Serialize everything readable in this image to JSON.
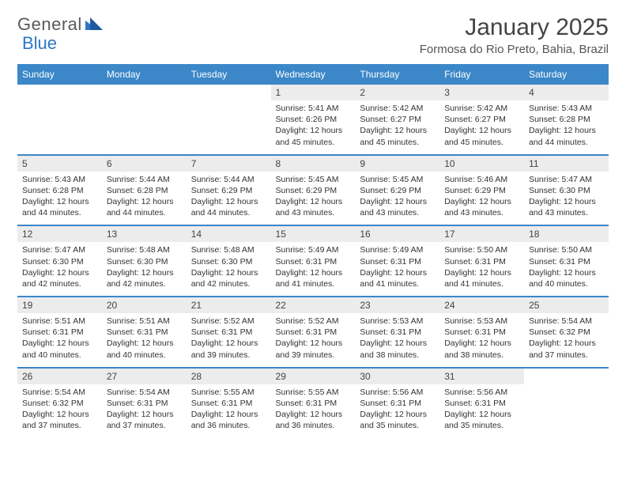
{
  "logo": {
    "text1": "General",
    "text2": "Blue"
  },
  "title": "January 2025",
  "location": "Formosa do Rio Preto, Bahia, Brazil",
  "colors": {
    "header_bg": "#3b87c8",
    "header_text": "#ffffff",
    "daynum_bg": "#ececec",
    "border": "#3b87c8",
    "logo_gray": "#5a5a5a",
    "logo_blue": "#2b78c4",
    "body_text": "#333333"
  },
  "day_headers": [
    "Sunday",
    "Monday",
    "Tuesday",
    "Wednesday",
    "Thursday",
    "Friday",
    "Saturday"
  ],
  "weeks": [
    {
      "nums": [
        "",
        "",
        "",
        "1",
        "2",
        "3",
        "4"
      ],
      "cells": [
        null,
        null,
        null,
        {
          "sunrise": "5:41 AM",
          "sunset": "6:26 PM",
          "daylight": "12 hours and 45 minutes."
        },
        {
          "sunrise": "5:42 AM",
          "sunset": "6:27 PM",
          "daylight": "12 hours and 45 minutes."
        },
        {
          "sunrise": "5:42 AM",
          "sunset": "6:27 PM",
          "daylight": "12 hours and 45 minutes."
        },
        {
          "sunrise": "5:43 AM",
          "sunset": "6:28 PM",
          "daylight": "12 hours and 44 minutes."
        }
      ]
    },
    {
      "nums": [
        "5",
        "6",
        "7",
        "8",
        "9",
        "10",
        "11"
      ],
      "cells": [
        {
          "sunrise": "5:43 AM",
          "sunset": "6:28 PM",
          "daylight": "12 hours and 44 minutes."
        },
        {
          "sunrise": "5:44 AM",
          "sunset": "6:28 PM",
          "daylight": "12 hours and 44 minutes."
        },
        {
          "sunrise": "5:44 AM",
          "sunset": "6:29 PM",
          "daylight": "12 hours and 44 minutes."
        },
        {
          "sunrise": "5:45 AM",
          "sunset": "6:29 PM",
          "daylight": "12 hours and 43 minutes."
        },
        {
          "sunrise": "5:45 AM",
          "sunset": "6:29 PM",
          "daylight": "12 hours and 43 minutes."
        },
        {
          "sunrise": "5:46 AM",
          "sunset": "6:29 PM",
          "daylight": "12 hours and 43 minutes."
        },
        {
          "sunrise": "5:47 AM",
          "sunset": "6:30 PM",
          "daylight": "12 hours and 43 minutes."
        }
      ]
    },
    {
      "nums": [
        "12",
        "13",
        "14",
        "15",
        "16",
        "17",
        "18"
      ],
      "cells": [
        {
          "sunrise": "5:47 AM",
          "sunset": "6:30 PM",
          "daylight": "12 hours and 42 minutes."
        },
        {
          "sunrise": "5:48 AM",
          "sunset": "6:30 PM",
          "daylight": "12 hours and 42 minutes."
        },
        {
          "sunrise": "5:48 AM",
          "sunset": "6:30 PM",
          "daylight": "12 hours and 42 minutes."
        },
        {
          "sunrise": "5:49 AM",
          "sunset": "6:31 PM",
          "daylight": "12 hours and 41 minutes."
        },
        {
          "sunrise": "5:49 AM",
          "sunset": "6:31 PM",
          "daylight": "12 hours and 41 minutes."
        },
        {
          "sunrise": "5:50 AM",
          "sunset": "6:31 PM",
          "daylight": "12 hours and 41 minutes."
        },
        {
          "sunrise": "5:50 AM",
          "sunset": "6:31 PM",
          "daylight": "12 hours and 40 minutes."
        }
      ]
    },
    {
      "nums": [
        "19",
        "20",
        "21",
        "22",
        "23",
        "24",
        "25"
      ],
      "cells": [
        {
          "sunrise": "5:51 AM",
          "sunset": "6:31 PM",
          "daylight": "12 hours and 40 minutes."
        },
        {
          "sunrise": "5:51 AM",
          "sunset": "6:31 PM",
          "daylight": "12 hours and 40 minutes."
        },
        {
          "sunrise": "5:52 AM",
          "sunset": "6:31 PM",
          "daylight": "12 hours and 39 minutes."
        },
        {
          "sunrise": "5:52 AM",
          "sunset": "6:31 PM",
          "daylight": "12 hours and 39 minutes."
        },
        {
          "sunrise": "5:53 AM",
          "sunset": "6:31 PM",
          "daylight": "12 hours and 38 minutes."
        },
        {
          "sunrise": "5:53 AM",
          "sunset": "6:31 PM",
          "daylight": "12 hours and 38 minutes."
        },
        {
          "sunrise": "5:54 AM",
          "sunset": "6:32 PM",
          "daylight": "12 hours and 37 minutes."
        }
      ]
    },
    {
      "nums": [
        "26",
        "27",
        "28",
        "29",
        "30",
        "31",
        ""
      ],
      "cells": [
        {
          "sunrise": "5:54 AM",
          "sunset": "6:32 PM",
          "daylight": "12 hours and 37 minutes."
        },
        {
          "sunrise": "5:54 AM",
          "sunset": "6:31 PM",
          "daylight": "12 hours and 37 minutes."
        },
        {
          "sunrise": "5:55 AM",
          "sunset": "6:31 PM",
          "daylight": "12 hours and 36 minutes."
        },
        {
          "sunrise": "5:55 AM",
          "sunset": "6:31 PM",
          "daylight": "12 hours and 36 minutes."
        },
        {
          "sunrise": "5:56 AM",
          "sunset": "6:31 PM",
          "daylight": "12 hours and 35 minutes."
        },
        {
          "sunrise": "5:56 AM",
          "sunset": "6:31 PM",
          "daylight": "12 hours and 35 minutes."
        },
        null
      ]
    }
  ],
  "labels": {
    "sunrise": "Sunrise:",
    "sunset": "Sunset:",
    "daylight": "Daylight:"
  }
}
